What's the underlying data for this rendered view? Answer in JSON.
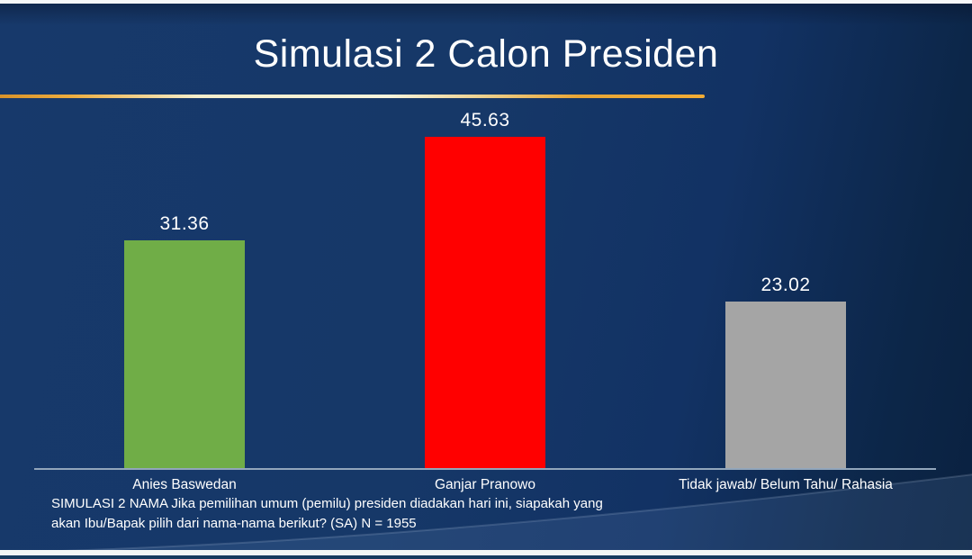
{
  "slide": {
    "title": "Simulasi 2 Calon Presiden",
    "footnote": {
      "line1": "SIMULASI 2 NAMA Jika pemilihan umum (pemilu) presiden diadakan hari ini, siapakah yang",
      "line2": "akan Ibu/Bapak pilih dari nama-nama berikut? (SA) N = 1955"
    }
  },
  "colors": {
    "background_main": "#15386A",
    "background_dark": "#0B2342",
    "accent_gold": "#E8A636",
    "accent_gold_light": "#F8F4DC",
    "axis_line": "#92A6BB",
    "text": "#FFFFFF",
    "bottom_strip_white": "#F3F6F5",
    "bottom_strip_navy": "#16395E"
  },
  "chart_data": {
    "type": "bar",
    "title": "Simulasi 2 Calon Presiden",
    "categories": [
      "Anies Baswedan",
      "Ganjar Pranowo",
      "Tidak jawab/ Belum Tahu/ Rahasia"
    ],
    "values": [
      31.36,
      45.63,
      23.02
    ],
    "data_labels": [
      "31.36",
      "45.63",
      "23.02"
    ],
    "bar_colors": [
      "#70AD47",
      "#FF0000",
      "#A5A5A5"
    ],
    "bar_names": [
      "bar-anies-baswedan",
      "bar-ganjar-pranowo",
      "bar-tidak-jawab-belum-tahu-rahasia"
    ],
    "xlabel": "",
    "ylabel": "",
    "ylim": [
      0,
      49.6
    ],
    "grid": false,
    "legend": "none",
    "data_labels_position": "above-bar"
  }
}
